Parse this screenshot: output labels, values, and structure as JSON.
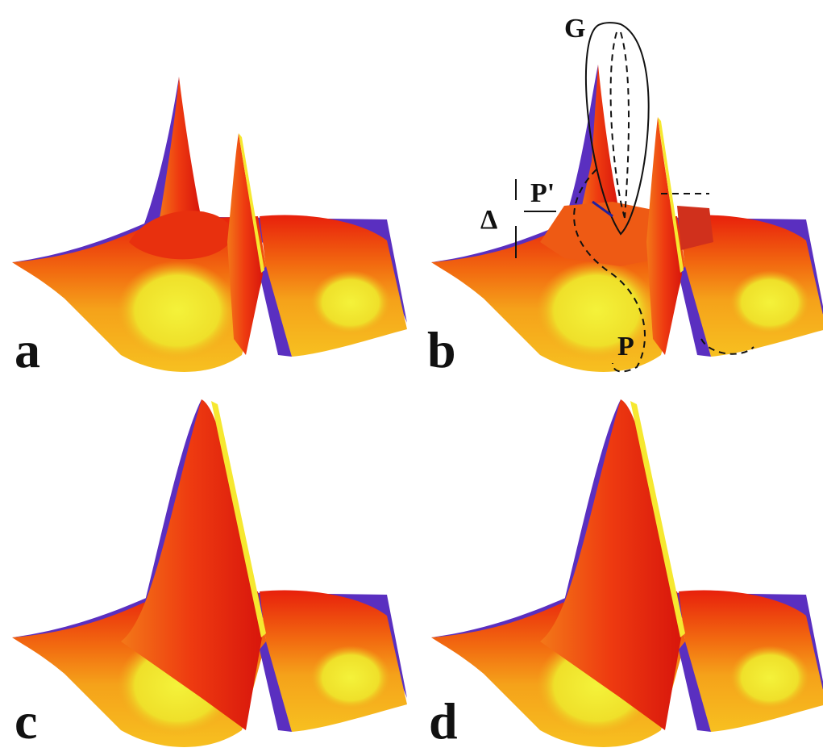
{
  "panels": [
    {
      "label": "a"
    },
    {
      "label": "b",
      "annotations": [
        "G",
        "P'",
        "Δ",
        "P"
      ]
    },
    {
      "label": "c"
    },
    {
      "label": "d"
    }
  ]
}
